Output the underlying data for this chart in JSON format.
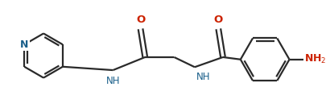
{
  "bg_color": "#ffffff",
  "bond_color": "#2a2a2a",
  "color_N": "#1a5f8a",
  "color_O": "#cc2200",
  "lw": 1.6,
  "figsize": [
    4.06,
    1.39
  ],
  "dpi": 100,
  "xlim": [
    0,
    406
  ],
  "ylim": [
    0,
    139
  ]
}
